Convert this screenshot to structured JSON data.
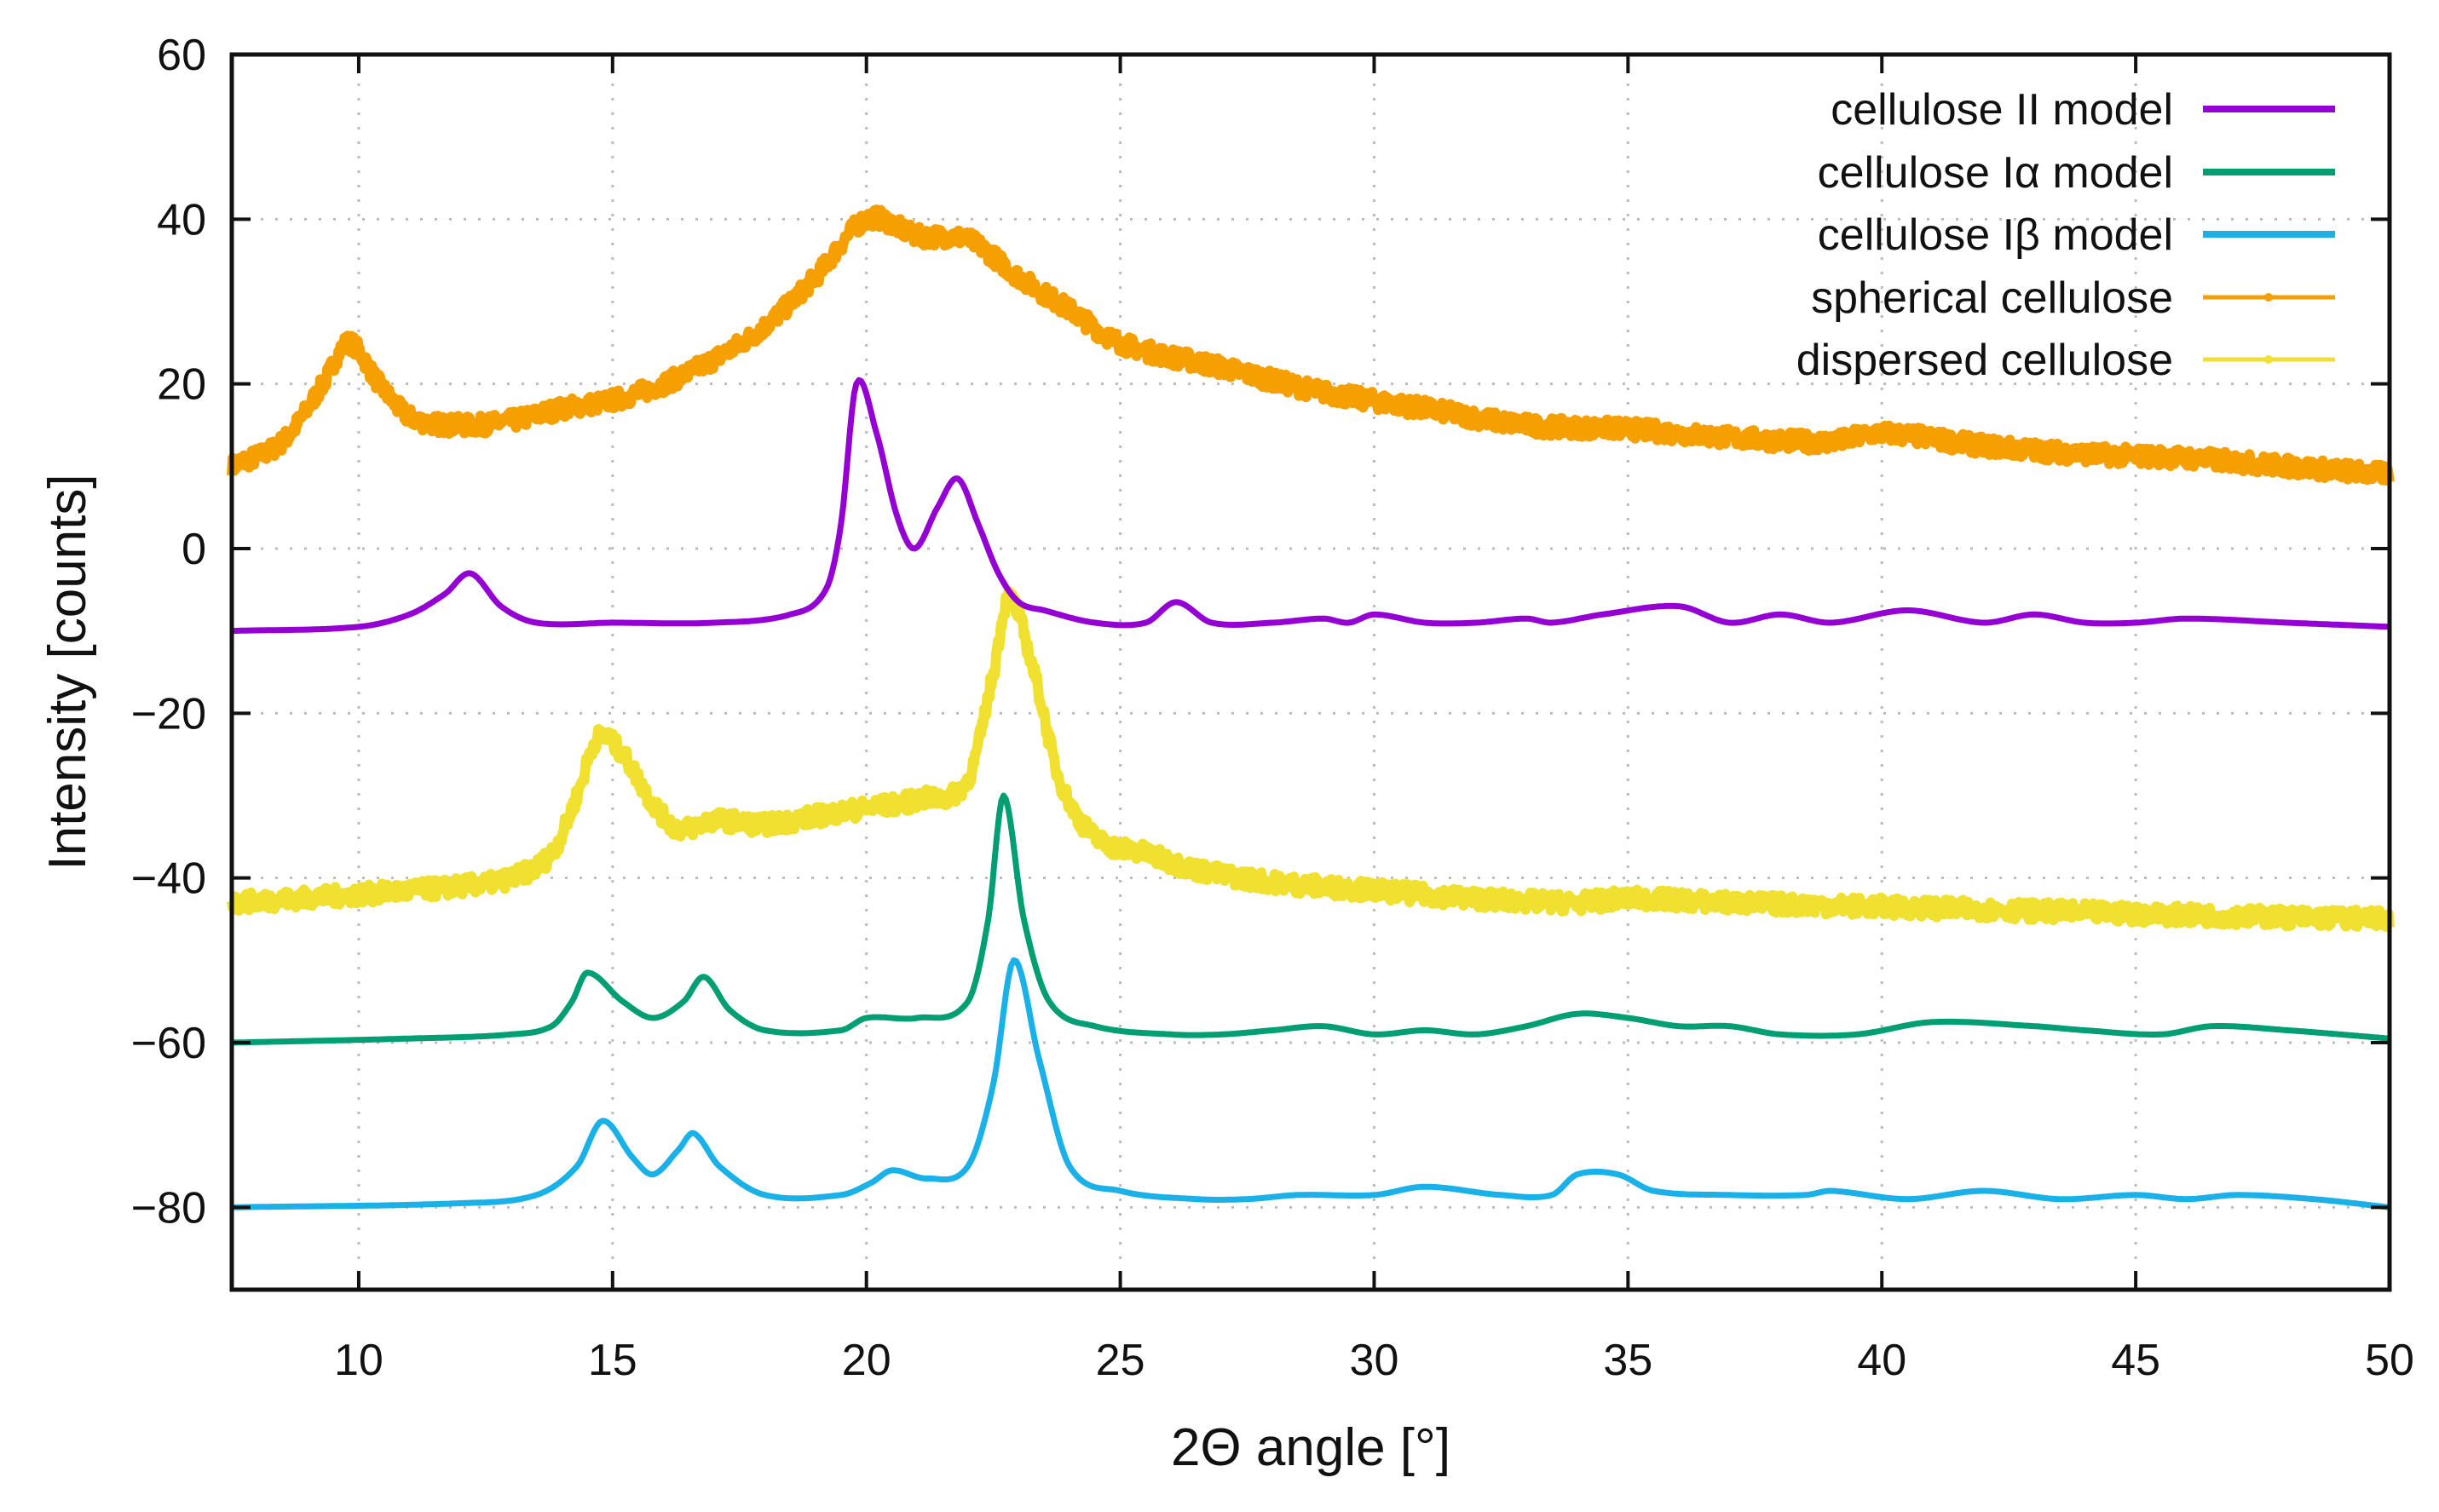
{
  "chart_data": {
    "type": "line",
    "title": "",
    "xlabel": "2Θ angle [°]",
    "ylabel": "Intensity [counts]",
    "xlim": [
      7.5,
      50
    ],
    "ylim": [
      -90,
      60
    ],
    "xticks": [
      10,
      15,
      20,
      25,
      30,
      35,
      40,
      45,
      50
    ],
    "yticks": [
      60,
      40,
      20,
      0,
      -20,
      -40,
      -60,
      -80
    ],
    "ytick_labels": [
      "60",
      "40",
      "20",
      "0",
      "−20",
      "−40",
      "−60",
      "−80"
    ],
    "grid": true,
    "legend_position": "top-right",
    "series": [
      {
        "name": "cellulose II model",
        "color": "#9400d3",
        "style": "line",
        "x": [
          7.5,
          10,
          11,
          11.7,
          12.2,
          12.8,
          13.5,
          15,
          17,
          18.5,
          19.2,
          19.5,
          19.8,
          20.2,
          20.6,
          20.95,
          21.4,
          21.8,
          22.2,
          22.6,
          23,
          23.5,
          24.5,
          25.5,
          26.1,
          26.8,
          28,
          29,
          29.5,
          30,
          31,
          32,
          33,
          33.5,
          34.5,
          36,
          37,
          38,
          39,
          40.5,
          42,
          43,
          44,
          45,
          46,
          48,
          50
        ],
        "y": [
          -10,
          -9.5,
          -8,
          -5.5,
          -3,
          -7,
          -9,
          -9,
          -9,
          -8,
          -5,
          3,
          20,
          14,
          4,
          0,
          5,
          8.5,
          3,
          -3,
          -6.5,
          -7.5,
          -9,
          -9,
          -6.5,
          -9,
          -9,
          -8.5,
          -9,
          -8,
          -9,
          -9,
          -8.5,
          -9,
          -8,
          -7,
          -9,
          -8,
          -9,
          -7.5,
          -9,
          -8,
          -9,
          -9,
          -8.5,
          -9,
          -9.5
        ]
      },
      {
        "name": "cellulose Iα model",
        "color": "#009e73",
        "style": "line",
        "x": [
          7.5,
          11,
          13,
          13.8,
          14.2,
          14.5,
          15.2,
          15.8,
          16.4,
          16.8,
          17.3,
          18,
          19.5,
          20,
          21,
          22,
          22.4,
          22.7,
          23.1,
          23.6,
          24.5,
          26,
          27,
          28,
          29,
          30,
          31,
          32,
          33,
          34,
          35,
          36,
          37,
          38,
          39.5,
          41,
          43,
          44,
          45.5,
          46.5,
          48,
          50
        ],
        "y": [
          -60,
          -59.5,
          -59,
          -58,
          -55,
          -51.5,
          -55,
          -57,
          -55,
          -52,
          -56,
          -58.5,
          -58.5,
          -57,
          -57,
          -55,
          -45,
          -30,
          -45,
          -55,
          -58,
          -59,
          -59,
          -58.5,
          -58,
          -59,
          -58.5,
          -59,
          -58,
          -56.5,
          -57,
          -58,
          -58,
          -59,
          -59,
          -57.5,
          -58,
          -58.5,
          -59,
          -58,
          -58.5,
          -59.5
        ]
      },
      {
        "name": "cellulose Iβ model",
        "color": "#1ab0e8",
        "style": "line",
        "x": [
          7.5,
          12,
          13.5,
          14.3,
          14.8,
          15.4,
          15.8,
          16.3,
          16.6,
          17.1,
          18,
          19.5,
          20.1,
          20.5,
          21.2,
          22,
          22.5,
          22.9,
          23.4,
          24,
          25,
          26.5,
          27.5,
          28.5,
          30,
          31,
          32.5,
          33.5,
          34,
          34.8,
          35.5,
          37,
          38.5,
          39,
          40.5,
          42,
          43.5,
          45,
          46,
          47,
          48.5,
          50
        ],
        "y": [
          -80,
          -79.5,
          -78.5,
          -75,
          -69.5,
          -74,
          -76,
          -73,
          -71,
          -75,
          -78.5,
          -78.5,
          -77,
          -75.5,
          -76.5,
          -75,
          -65,
          -50,
          -62,
          -75,
          -78,
          -79,
          -79,
          -78.5,
          -78.5,
          -77.5,
          -78.5,
          -78.5,
          -76,
          -76,
          -78,
          -78.5,
          -78.5,
          -78,
          -79,
          -78,
          -79,
          -78.5,
          -79,
          -78.5,
          -79,
          -80
        ]
      },
      {
        "name": "spherical cellulose",
        "color": "#f5a000",
        "style": "points",
        "x": [
          7.5,
          8.5,
          9.3,
          9.8,
          10.4,
          11,
          12,
          13,
          14,
          15,
          16,
          17,
          18,
          19,
          20,
          21,
          22,
          23,
          24,
          25,
          27,
          29,
          31,
          33,
          35,
          37,
          39,
          40,
          42,
          44,
          46,
          48,
          50
        ],
        "y": [
          10,
          13,
          20,
          25,
          20,
          16,
          15,
          15.5,
          17,
          18,
          20,
          23,
          27,
          33,
          40,
          38,
          37.5,
          33,
          29,
          25,
          22,
          19,
          17,
          15,
          14.5,
          13.5,
          13,
          14,
          12.5,
          11.5,
          11,
          10,
          9
        ]
      },
      {
        "name": "dispersed cellulose",
        "color": "#f0e030",
        "style": "points",
        "x": [
          7.5,
          10,
          12,
          13,
          13.8,
          14.3,
          14.7,
          15.2,
          15.8,
          16.3,
          17,
          18,
          19,
          20,
          21,
          22,
          22.5,
          22.8,
          23.3,
          23.8,
          24.5,
          25.5,
          26.5,
          28,
          30,
          32,
          34,
          35,
          37,
          40,
          43,
          46,
          50
        ],
        "y": [
          -43,
          -42,
          -41,
          -40,
          -37,
          -30,
          -23,
          -25,
          -31,
          -34,
          -33,
          -33.5,
          -32.5,
          -31.5,
          -30.5,
          -28,
          -15,
          -6,
          -15,
          -28,
          -35,
          -37,
          -39,
          -40.5,
          -41.5,
          -42.5,
          -43,
          -42.5,
          -43,
          -43.5,
          -44,
          -44.5,
          -45
        ]
      }
    ]
  }
}
